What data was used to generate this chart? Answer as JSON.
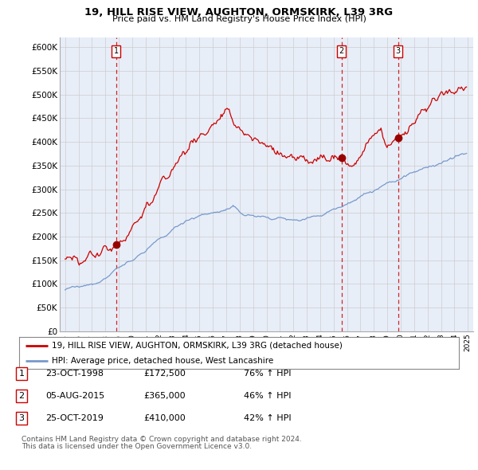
{
  "title": "19, HILL RISE VIEW, AUGHTON, ORMSKIRK, L39 3RG",
  "subtitle": "Price paid vs. HM Land Registry's House Price Index (HPI)",
  "legend_label_red": "19, HILL RISE VIEW, AUGHTON, ORMSKIRK, L39 3RG (detached house)",
  "legend_label_blue": "HPI: Average price, detached house, West Lancashire",
  "transactions": [
    {
      "num": 1,
      "date": "23-OCT-1998",
      "price": 172500,
      "change": "76%",
      "dir": "↑",
      "ref": "HPI",
      "year": 1998.81
    },
    {
      "num": 2,
      "date": "05-AUG-2015",
      "price": 365000,
      "change": "46%",
      "dir": "↑",
      "ref": "HPI",
      "year": 2015.59
    },
    {
      "num": 3,
      "date": "25-OCT-2019",
      "price": 410000,
      "change": "42%",
      "dir": "↑",
      "ref": "HPI",
      "year": 2019.81
    }
  ],
  "footnote1": "Contains HM Land Registry data © Crown copyright and database right 2024.",
  "footnote2": "This data is licensed under the Open Government Licence v3.0.",
  "ylim": [
    0,
    620000
  ],
  "yticks": [
    0,
    50000,
    100000,
    150000,
    200000,
    250000,
    300000,
    350000,
    400000,
    450000,
    500000,
    550000,
    600000
  ],
  "red_color": "#cc0000",
  "blue_color": "#7799cc",
  "dot_color": "#990000",
  "vline_color": "#cc0000",
  "grid_color": "#cccccc",
  "chart_bg": "#e8eef8",
  "background_color": "#ffffff"
}
